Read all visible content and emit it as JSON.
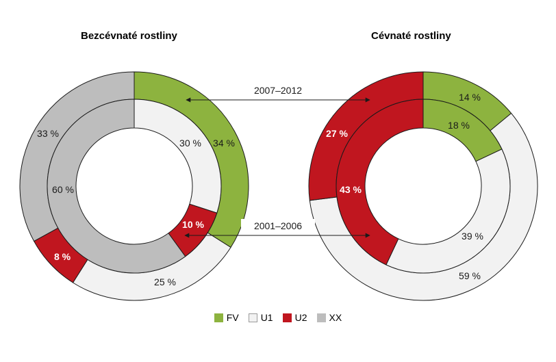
{
  "chart_data": [
    {
      "type": "pie",
      "variant": "double-donut",
      "title": "Bezcévnaté rostliny",
      "rings": [
        {
          "name": "2007–2012",
          "ring": "outer",
          "values": [
            {
              "category": "FV",
              "value": 34
            },
            {
              "category": "U1",
              "value": 25
            },
            {
              "category": "U2",
              "value": 8
            },
            {
              "category": "XX",
              "value": 33
            }
          ]
        },
        {
          "name": "2001–2006",
          "ring": "inner",
          "values": [
            {
              "category": "FV",
              "value": 0
            },
            {
              "category": "U1",
              "value": 30
            },
            {
              "category": "U2",
              "value": 10
            },
            {
              "category": "XX",
              "value": 60
            }
          ]
        }
      ]
    },
    {
      "type": "pie",
      "variant": "double-donut",
      "title": "Cévnaté rostliny",
      "rings": [
        {
          "name": "2007–2012",
          "ring": "outer",
          "values": [
            {
              "category": "FV",
              "value": 14
            },
            {
              "category": "U1",
              "value": 59
            },
            {
              "category": "U2",
              "value": 27
            },
            {
              "category": "XX",
              "value": 0
            }
          ]
        },
        {
          "name": "2001–2006",
          "ring": "inner",
          "values": [
            {
              "category": "FV",
              "value": 18
            },
            {
              "category": "U1",
              "value": 39
            },
            {
              "category": "U2",
              "value": 43
            },
            {
              "category": "XX",
              "value": 0
            }
          ]
        }
      ]
    }
  ],
  "annotations": {
    "outer_ring": "2007–2012",
    "inner_ring": "2001–2006"
  },
  "legend": {
    "placement": "bottom-center",
    "items": [
      {
        "category": "FV",
        "label": "FV",
        "color": "#8db33f"
      },
      {
        "category": "U1",
        "label": "U1",
        "color": "#f2f2f2"
      },
      {
        "category": "U2",
        "label": "U2",
        "color": "#c0161f"
      },
      {
        "category": "XX",
        "label": "XX",
        "color": "#bdbdbd"
      }
    ]
  },
  "colors": {
    "FV": "#8db33f",
    "U1": "#f2f2f2",
    "U2": "#c0161f",
    "XX": "#bdbdbd",
    "stroke": "#1a1a1a",
    "label_dark": "#1a1a1a",
    "label_light": "#ffffff"
  }
}
